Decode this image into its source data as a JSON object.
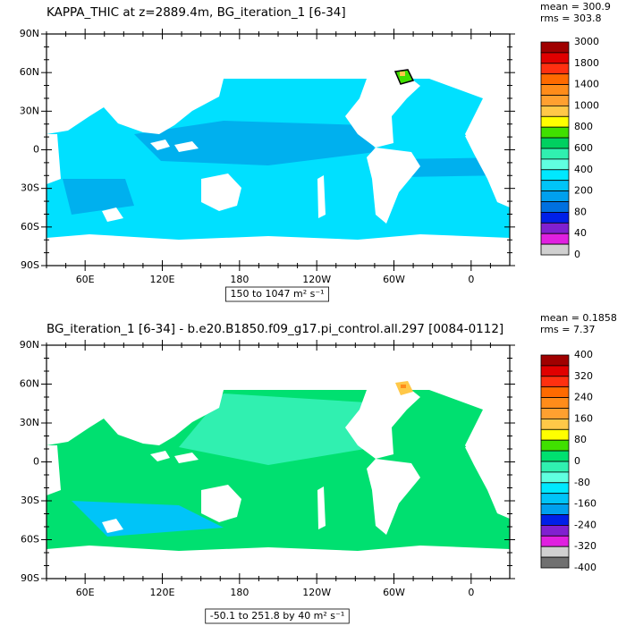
{
  "panels": [
    {
      "title": "KAPPA_THIC at z=2889.4m, BG_iteration_1 [6-34]",
      "mean": "mean = 300.9",
      "rms": "rms = 303.8",
      "lat_labels": [
        "90N",
        "60N",
        "30N",
        "0",
        "30S",
        "60S",
        "90S"
      ],
      "lon_labels": [
        "60E",
        "120E",
        "180",
        "120W",
        "60W",
        "0"
      ],
      "range": "150 to 1047 m² s⁻¹",
      "colorbar": {
        "labels": [
          "3000",
          "1800",
          "1400",
          "1000",
          "800",
          "600",
          "400",
          "200",
          "80",
          "40",
          "0"
        ],
        "colors": [
          "#a00000",
          "#e00000",
          "#ff3010",
          "#ff6a00",
          "#ff8c1a",
          "#ffa030",
          "#ffc848",
          "#ffff00",
          "#40e000",
          "#00d060",
          "#30f0b0",
          "#60ffe0",
          "#00e8ff",
          "#00c4f8",
          "#00a0ee",
          "#0070e0",
          "#0020e8",
          "#8020d0",
          "#e020e0",
          "#d0d0d0"
        ]
      }
    },
    {
      "title": "BG_iteration_1 [6-34] - b.e20.B1850.f09_g17.pi_control.all.297 [0084-0112]",
      "mean": "mean = 0.1858",
      "rms": "rms = 7.37",
      "lat_labels": [
        "90N",
        "60N",
        "30N",
        "0",
        "30S",
        "60S",
        "90S"
      ],
      "lon_labels": [
        "60E",
        "120E",
        "180",
        "120W",
        "60W",
        "0"
      ],
      "range": "-50.1 to 251.8 by 40 m² s⁻¹",
      "colorbar": {
        "labels": [
          "400",
          "320",
          "240",
          "160",
          "80",
          "0",
          "-80",
          "-160",
          "-240",
          "-320",
          "-400"
        ],
        "colors": [
          "#a00000",
          "#e00000",
          "#ff3010",
          "#ff6a00",
          "#ff8c1a",
          "#ffa030",
          "#ffc848",
          "#ffff00",
          "#40e000",
          "#00e070",
          "#30f0b0",
          "#60ffe0",
          "#00e8ff",
          "#00c4f8",
          "#00a0ee",
          "#0020e8",
          "#8020d0",
          "#e020e0",
          "#d0d0d0",
          "#707070"
        ]
      }
    }
  ]
}
